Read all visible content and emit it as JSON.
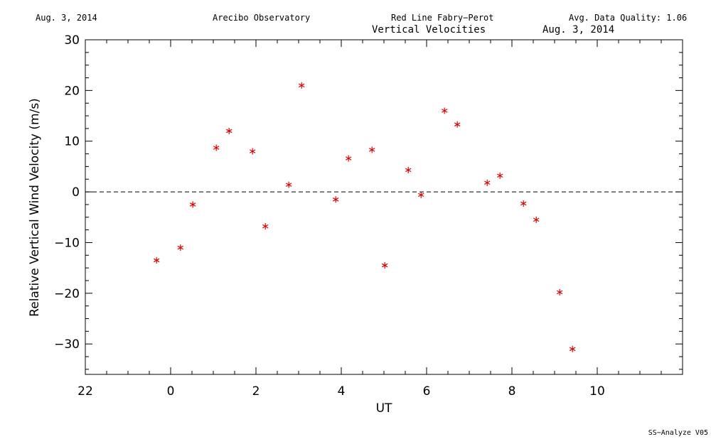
{
  "header": {
    "date": "Aug. 3, 2014",
    "observatory": "Arecibo Observatory",
    "instrument": "Red Line Fabry−Perot",
    "quality": "Avg. Data Quality: 1.06"
  },
  "subtitle": {
    "title": "Vertical Velocities",
    "date": "Aug. 3, 2014"
  },
  "footer": "SS−Analyze V05",
  "colors": {
    "marker": "#dd0000",
    "axis": "#000000"
  },
  "chart_data": {
    "type": "scatter",
    "title": "Vertical Velocities",
    "xlabel": "UT",
    "ylabel": "Relative Vertical Wind Velocity (m/s)",
    "xlim": [
      -2.0,
      12.0
    ],
    "ylim": [
      -36,
      30
    ],
    "xticks": [
      22,
      0,
      2,
      4,
      6,
      8,
      10
    ],
    "yticks": [
      30,
      20,
      10,
      0,
      -10,
      -20,
      -30
    ],
    "marker": "asterisk",
    "reference_line": {
      "y": 0,
      "style": "dashed"
    },
    "points": [
      {
        "x": -0.33,
        "y": -13.5
      },
      {
        "x": 0.23,
        "y": -11.0
      },
      {
        "x": 0.52,
        "y": -2.5
      },
      {
        "x": 1.07,
        "y": 8.7
      },
      {
        "x": 1.37,
        "y": 12.0
      },
      {
        "x": 1.92,
        "y": 8.0
      },
      {
        "x": 2.22,
        "y": -6.8
      },
      {
        "x": 2.77,
        "y": 1.4
      },
      {
        "x": 3.07,
        "y": 21.0
      },
      {
        "x": 3.87,
        "y": -1.5
      },
      {
        "x": 4.17,
        "y": 6.6
      },
      {
        "x": 4.72,
        "y": 8.3
      },
      {
        "x": 5.02,
        "y": -14.5
      },
      {
        "x": 5.57,
        "y": 4.3
      },
      {
        "x": 5.87,
        "y": -0.6
      },
      {
        "x": 6.42,
        "y": 16.0
      },
      {
        "x": 6.72,
        "y": 13.3
      },
      {
        "x": 7.42,
        "y": 1.8
      },
      {
        "x": 7.72,
        "y": 3.2
      },
      {
        "x": 8.27,
        "y": -2.3
      },
      {
        "x": 8.57,
        "y": -5.5
      },
      {
        "x": 9.12,
        "y": -19.8
      },
      {
        "x": 9.42,
        "y": -31.0
      }
    ]
  }
}
